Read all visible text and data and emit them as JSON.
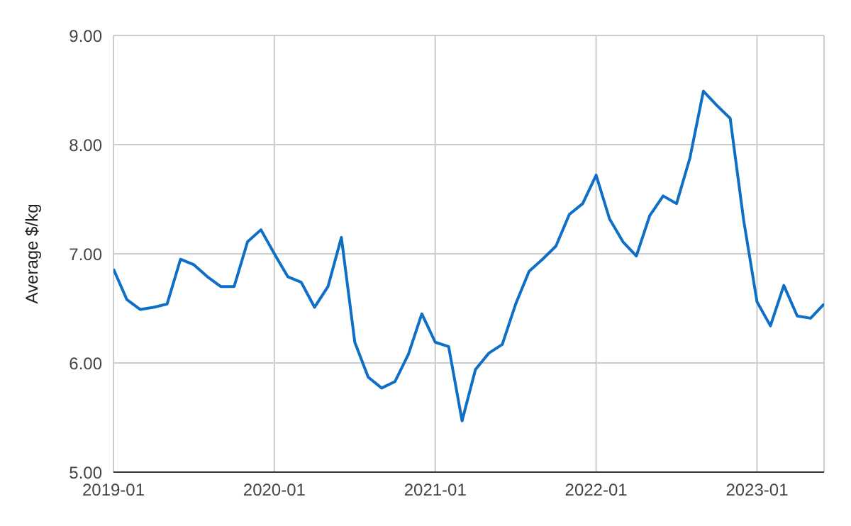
{
  "chart_data": {
    "type": "line",
    "ylabel": "Average $/kg",
    "x": [
      "2019-01",
      "2019-02",
      "2019-03",
      "2019-04",
      "2019-05",
      "2019-06",
      "2019-07",
      "2019-08",
      "2019-09",
      "2019-10",
      "2019-11",
      "2019-12",
      "2020-01",
      "2020-02",
      "2020-03",
      "2020-04",
      "2020-05",
      "2020-06",
      "2020-07",
      "2020-08",
      "2020-09",
      "2020-10",
      "2020-11",
      "2020-12",
      "2021-01",
      "2021-02",
      "2021-03",
      "2021-04",
      "2021-05",
      "2021-06",
      "2021-07",
      "2021-08",
      "2021-09",
      "2021-10",
      "2021-11",
      "2021-12",
      "2022-01",
      "2022-02",
      "2022-03",
      "2022-04",
      "2022-05",
      "2022-06",
      "2022-07",
      "2022-08",
      "2022-09",
      "2022-10",
      "2022-11",
      "2022-12",
      "2023-01",
      "2023-02",
      "2023-03",
      "2023-04",
      "2023-05",
      "2023-06"
    ],
    "series": [
      {
        "color": "#0f6fc6",
        "values": [
          6.86,
          6.58,
          6.49,
          6.51,
          6.54,
          6.95,
          6.9,
          6.79,
          6.7,
          6.7,
          7.11,
          7.22,
          7.0,
          6.79,
          6.74,
          6.51,
          6.7,
          7.15,
          6.19,
          5.87,
          5.77,
          5.83,
          6.08,
          6.45,
          6.19,
          6.15,
          5.47,
          5.94,
          6.09,
          6.17,
          6.54,
          6.84,
          6.95,
          7.07,
          7.36,
          7.46,
          7.72,
          7.32,
          7.11,
          6.98,
          7.35,
          7.53,
          7.46,
          7.88,
          8.49,
          8.36,
          8.24,
          7.31,
          6.56,
          6.34,
          6.71,
          6.43,
          6.41,
          6.54
        ]
      }
    ],
    "xlim": [
      "2019-01",
      "2023-06"
    ],
    "xticks": [
      "2019-01",
      "2020-01",
      "2021-01",
      "2022-01",
      "2023-01"
    ],
    "ylim": [
      5,
      9
    ],
    "yticks": [
      {
        "value": 5,
        "label": "5.00"
      },
      {
        "value": 6,
        "label": "6.00"
      },
      {
        "value": 7,
        "label": "7.00"
      },
      {
        "value": 8,
        "label": "8.00"
      },
      {
        "value": 9,
        "label": "9.00"
      }
    ],
    "grid": true,
    "marker": "none",
    "line_style": "solid",
    "legend": false
  }
}
